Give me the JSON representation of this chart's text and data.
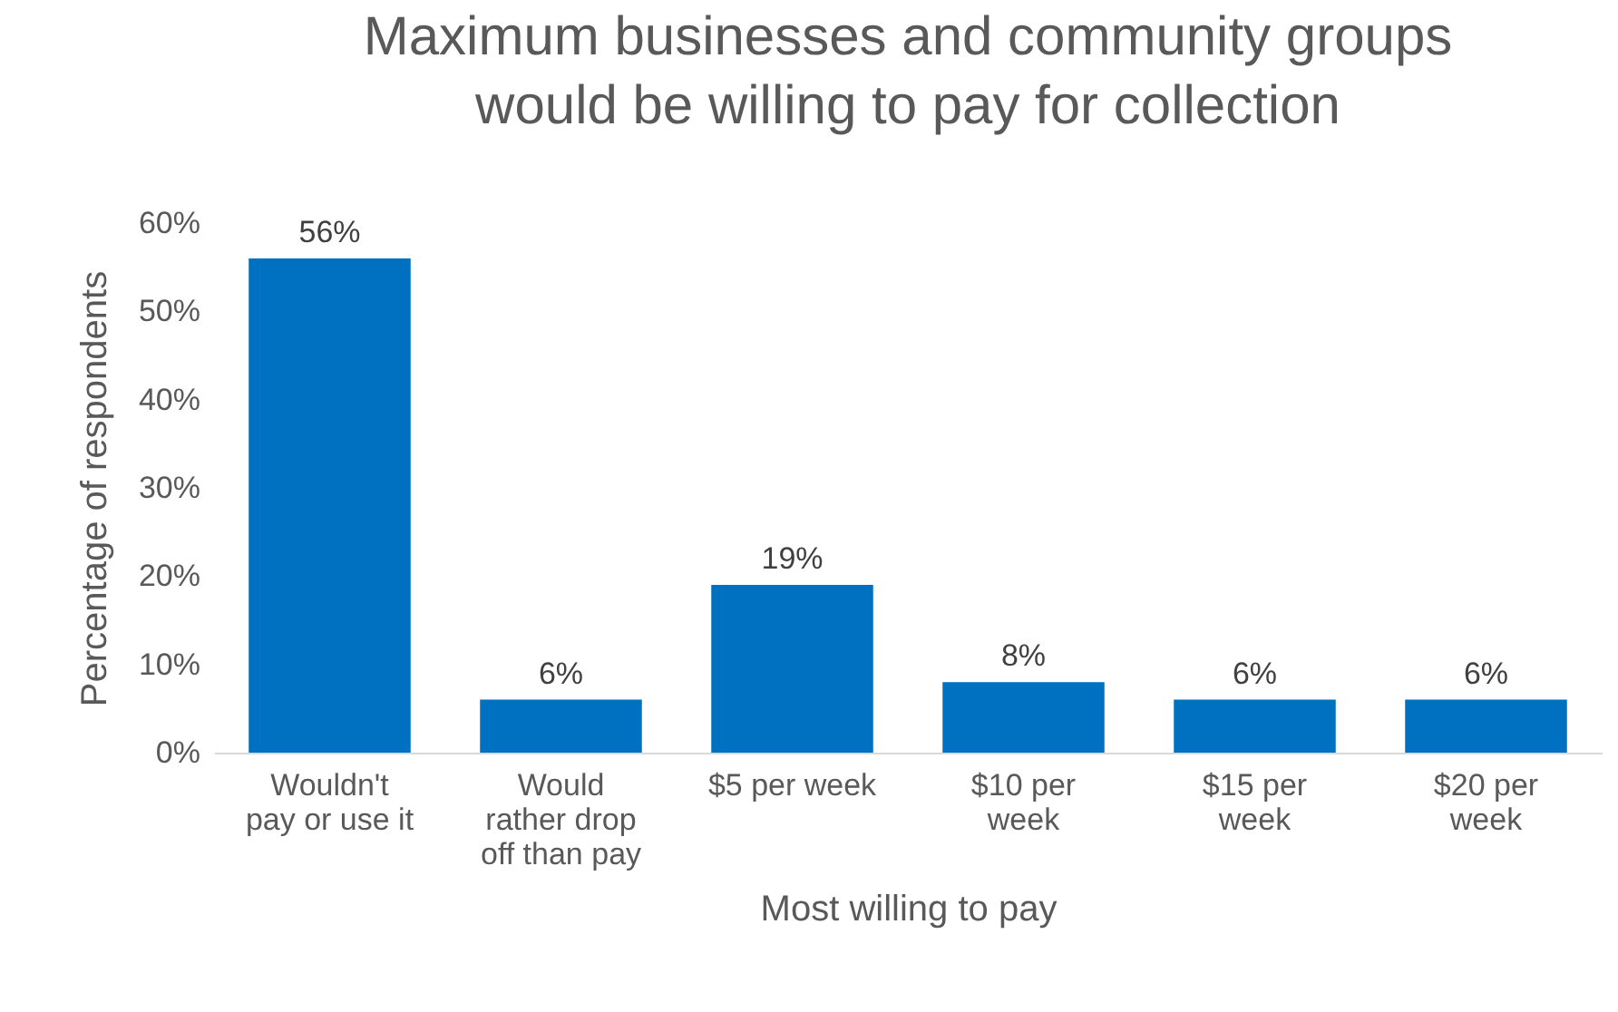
{
  "chart_data": {
    "type": "bar",
    "title": "Maximum businesses and community groups would be willing to pay for collection",
    "xlabel": "Most willing to pay",
    "ylabel": "Percentage of respondents",
    "categories": [
      "Wouldn't pay or use it",
      "Would rather drop off than pay",
      "$5 per week",
      "$10 per week",
      "$15 per week",
      "$20 per week"
    ],
    "values": [
      56,
      6,
      19,
      8,
      6,
      6
    ],
    "value_labels": [
      "56%",
      "6%",
      "19%",
      "8%",
      "6%",
      "6%"
    ],
    "color": "#0070c0",
    "ylim": [
      0,
      60
    ],
    "yticks": [
      {
        "value": 0,
        "label": "0%"
      },
      {
        "value": 10,
        "label": "10%"
      },
      {
        "value": 20,
        "label": "20%"
      },
      {
        "value": 30,
        "label": "30%"
      },
      {
        "value": 40,
        "label": "40%"
      },
      {
        "value": 50,
        "label": "50%"
      },
      {
        "value": 60,
        "label": "60%"
      }
    ],
    "grid": false
  }
}
